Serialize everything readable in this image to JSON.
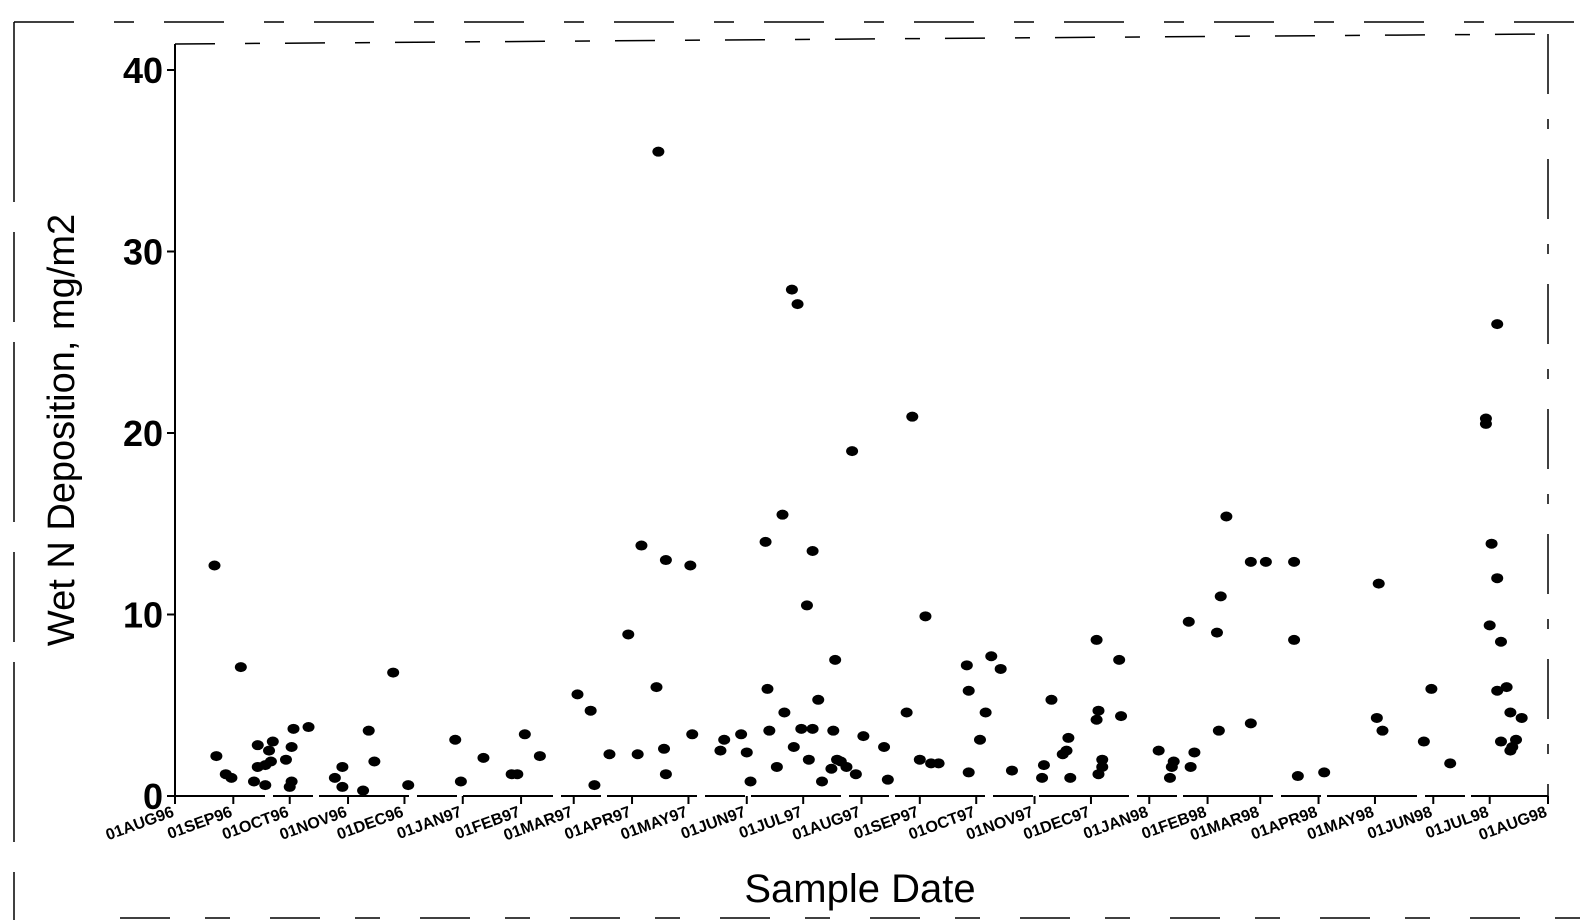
{
  "chart_data": {
    "type": "scatter",
    "title": "",
    "xlabel": "Sample Date",
    "ylabel": "Wet N Deposition, mg/m2",
    "ylim": [
      0,
      40
    ],
    "xlim": [
      "1996-08-01",
      "1998-08-01"
    ],
    "grid": false,
    "legend": "none",
    "marker_color": "#000000",
    "y_ticks": [
      0,
      10,
      20,
      30,
      40
    ],
    "x_ticks": [
      {
        "label": "01AUG96",
        "date": "1996-08-01"
      },
      {
        "label": "01SEP96",
        "date": "1996-09-01"
      },
      {
        "label": "01OCT96",
        "date": "1996-10-01"
      },
      {
        "label": "01NOV96",
        "date": "1996-11-01"
      },
      {
        "label": "01DEC96",
        "date": "1996-12-01"
      },
      {
        "label": "01JAN97",
        "date": "1997-01-01"
      },
      {
        "label": "01FEB97",
        "date": "1997-02-01"
      },
      {
        "label": "01MAR97",
        "date": "1997-03-01"
      },
      {
        "label": "01APR97",
        "date": "1997-04-01"
      },
      {
        "label": "01MAY97",
        "date": "1997-05-01"
      },
      {
        "label": "01JUN97",
        "date": "1997-06-01"
      },
      {
        "label": "01JUL97",
        "date": "1997-07-01"
      },
      {
        "label": "01AUG97",
        "date": "1997-08-01"
      },
      {
        "label": "01SEP97",
        "date": "1997-09-01"
      },
      {
        "label": "01OCT97",
        "date": "1997-10-01"
      },
      {
        "label": "01NOV97",
        "date": "1997-11-01"
      },
      {
        "label": "01DEC97",
        "date": "1997-12-01"
      },
      {
        "label": "01JAN98",
        "date": "1998-01-01"
      },
      {
        "label": "01FEB98",
        "date": "1998-02-01"
      },
      {
        "label": "01MAR98",
        "date": "1998-03-01"
      },
      {
        "label": "01APR98",
        "date": "1998-04-01"
      },
      {
        "label": "01MAY98",
        "date": "1998-05-01"
      },
      {
        "label": "01JUN98",
        "date": "1998-06-01"
      },
      {
        "label": "01JUL98",
        "date": "1998-07-01"
      },
      {
        "label": "01AUG98",
        "date": "1998-08-01"
      }
    ],
    "points": [
      {
        "x": "1996-08-22",
        "y": 12.7
      },
      {
        "x": "1996-08-23",
        "y": 2.2
      },
      {
        "x": "1996-08-28",
        "y": 1.2
      },
      {
        "x": "1996-08-31",
        "y": 1.0
      },
      {
        "x": "1996-09-05",
        "y": 7.1
      },
      {
        "x": "1996-09-12",
        "y": 0.8
      },
      {
        "x": "1996-09-14",
        "y": 1.6
      },
      {
        "x": "1996-09-14",
        "y": 2.8
      },
      {
        "x": "1996-09-18",
        "y": 0.6
      },
      {
        "x": "1996-09-18",
        "y": 1.7
      },
      {
        "x": "1996-09-20",
        "y": 2.5
      },
      {
        "x": "1996-09-21",
        "y": 1.9
      },
      {
        "x": "1996-09-22",
        "y": 3.0
      },
      {
        "x": "1996-09-29",
        "y": 2.0
      },
      {
        "x": "1996-10-01",
        "y": 0.5
      },
      {
        "x": "1996-10-02",
        "y": 2.7
      },
      {
        "x": "1996-10-02",
        "y": 0.8
      },
      {
        "x": "1996-10-03",
        "y": 3.7
      },
      {
        "x": "1996-10-11",
        "y": 3.8
      },
      {
        "x": "1996-10-25",
        "y": 1.0
      },
      {
        "x": "1996-10-29",
        "y": 1.6
      },
      {
        "x": "1996-10-29",
        "y": 0.5
      },
      {
        "x": "1996-11-09",
        "y": 0.3
      },
      {
        "x": "1996-11-12",
        "y": 3.6
      },
      {
        "x": "1996-11-15",
        "y": 1.9
      },
      {
        "x": "1996-11-25",
        "y": 6.8
      },
      {
        "x": "1996-12-03",
        "y": 0.6
      },
      {
        "x": "1996-12-28",
        "y": 3.1
      },
      {
        "x": "1996-12-31",
        "y": 0.8
      },
      {
        "x": "1997-01-12",
        "y": 2.1
      },
      {
        "x": "1997-01-27",
        "y": 1.2
      },
      {
        "x": "1997-01-30",
        "y": 1.2
      },
      {
        "x": "1997-02-03",
        "y": 3.4
      },
      {
        "x": "1997-02-11",
        "y": 2.2
      },
      {
        "x": "1997-03-03",
        "y": 5.6
      },
      {
        "x": "1997-03-10",
        "y": 4.7
      },
      {
        "x": "1997-03-12",
        "y": 0.6
      },
      {
        "x": "1997-03-20",
        "y": 2.3
      },
      {
        "x": "1997-03-30",
        "y": 8.9
      },
      {
        "x": "1997-04-04",
        "y": 2.3
      },
      {
        "x": "1997-04-06",
        "y": 13.8
      },
      {
        "x": "1997-04-14",
        "y": 6.0
      },
      {
        "x": "1997-04-15",
        "y": 35.5
      },
      {
        "x": "1997-04-18",
        "y": 2.6
      },
      {
        "x": "1997-04-19",
        "y": 1.2
      },
      {
        "x": "1997-04-19",
        "y": 13.0
      },
      {
        "x": "1997-05-02",
        "y": 12.7
      },
      {
        "x": "1997-05-03",
        "y": 3.4
      },
      {
        "x": "1997-05-18",
        "y": 2.5
      },
      {
        "x": "1997-05-20",
        "y": 3.1
      },
      {
        "x": "1997-05-29",
        "y": 3.4
      },
      {
        "x": "1997-06-01",
        "y": 2.4
      },
      {
        "x": "1997-06-03",
        "y": 0.8
      },
      {
        "x": "1997-06-11",
        "y": 14.0
      },
      {
        "x": "1997-06-12",
        "y": 5.9
      },
      {
        "x": "1997-06-13",
        "y": 3.6
      },
      {
        "x": "1997-06-17",
        "y": 1.6
      },
      {
        "x": "1997-06-20",
        "y": 15.5
      },
      {
        "x": "1997-06-21",
        "y": 4.6
      },
      {
        "x": "1997-06-25",
        "y": 27.9
      },
      {
        "x": "1997-06-26",
        "y": 2.7
      },
      {
        "x": "1997-06-28",
        "y": 27.1
      },
      {
        "x": "1997-06-30",
        "y": 3.7
      },
      {
        "x": "1997-07-03",
        "y": 10.5
      },
      {
        "x": "1997-07-04",
        "y": 2.0
      },
      {
        "x": "1997-07-06",
        "y": 3.7
      },
      {
        "x": "1997-07-06",
        "y": 13.5
      },
      {
        "x": "1997-07-09",
        "y": 5.3
      },
      {
        "x": "1997-07-11",
        "y": 0.8
      },
      {
        "x": "1997-07-16",
        "y": 1.5
      },
      {
        "x": "1997-07-17",
        "y": 3.6
      },
      {
        "x": "1997-07-18",
        "y": 7.5
      },
      {
        "x": "1997-07-19",
        "y": 2.0
      },
      {
        "x": "1997-07-21",
        "y": 1.9
      },
      {
        "x": "1997-07-24",
        "y": 1.6
      },
      {
        "x": "1997-07-27",
        "y": 19.0
      },
      {
        "x": "1997-07-29",
        "y": 1.2
      },
      {
        "x": "1997-08-02",
        "y": 3.3
      },
      {
        "x": "1997-08-13",
        "y": 2.7
      },
      {
        "x": "1997-08-15",
        "y": 0.9
      },
      {
        "x": "1997-08-25",
        "y": 4.6
      },
      {
        "x": "1997-08-28",
        "y": 20.9
      },
      {
        "x": "1997-09-01",
        "y": 2.0
      },
      {
        "x": "1997-09-04",
        "y": 9.9
      },
      {
        "x": "1997-09-07",
        "y": 1.8
      },
      {
        "x": "1997-09-11",
        "y": 1.8
      },
      {
        "x": "1997-09-26",
        "y": 7.2
      },
      {
        "x": "1997-09-27",
        "y": 5.8
      },
      {
        "x": "1997-09-27",
        "y": 1.3
      },
      {
        "x": "1997-10-03",
        "y": 3.1
      },
      {
        "x": "1997-10-06",
        "y": 4.6
      },
      {
        "x": "1997-10-09",
        "y": 7.7
      },
      {
        "x": "1997-10-14",
        "y": 7.0
      },
      {
        "x": "1997-10-20",
        "y": 1.4
      },
      {
        "x": "1997-11-05",
        "y": 1.0
      },
      {
        "x": "1997-11-06",
        "y": 1.7
      },
      {
        "x": "1997-11-10",
        "y": 5.3
      },
      {
        "x": "1997-11-16",
        "y": 2.3
      },
      {
        "x": "1997-11-18",
        "y": 2.5
      },
      {
        "x": "1997-11-19",
        "y": 3.2
      },
      {
        "x": "1997-11-20",
        "y": 1.0
      },
      {
        "x": "1997-12-04",
        "y": 4.2
      },
      {
        "x": "1997-12-04",
        "y": 8.6
      },
      {
        "x": "1997-12-05",
        "y": 4.7
      },
      {
        "x": "1997-12-05",
        "y": 1.2
      },
      {
        "x": "1997-12-07",
        "y": 2.0
      },
      {
        "x": "1997-12-07",
        "y": 1.6
      },
      {
        "x": "1997-12-16",
        "y": 7.5
      },
      {
        "x": "1997-12-17",
        "y": 4.4
      },
      {
        "x": "1998-01-06",
        "y": 2.5
      },
      {
        "x": "1998-01-12",
        "y": 1.0
      },
      {
        "x": "1998-01-13",
        "y": 1.6
      },
      {
        "x": "1998-01-14",
        "y": 1.9
      },
      {
        "x": "1998-01-22",
        "y": 9.6
      },
      {
        "x": "1998-01-23",
        "y": 1.6
      },
      {
        "x": "1998-01-25",
        "y": 2.4
      },
      {
        "x": "1998-02-06",
        "y": 9.0
      },
      {
        "x": "1998-02-07",
        "y": 3.6
      },
      {
        "x": "1998-02-08",
        "y": 11.0
      },
      {
        "x": "1998-02-11",
        "y": 15.4
      },
      {
        "x": "1998-02-24",
        "y": 4.0
      },
      {
        "x": "1998-02-24",
        "y": 12.9
      },
      {
        "x": "1998-03-04",
        "y": 12.9
      },
      {
        "x": "1998-03-19",
        "y": 12.9
      },
      {
        "x": "1998-03-19",
        "y": 8.6
      },
      {
        "x": "1998-03-21",
        "y": 1.1
      },
      {
        "x": "1998-04-04",
        "y": 1.3
      },
      {
        "x": "1998-05-02",
        "y": 4.3
      },
      {
        "x": "1998-05-03",
        "y": 11.7
      },
      {
        "x": "1998-05-05",
        "y": 3.6
      },
      {
        "x": "1998-05-27",
        "y": 3.0
      },
      {
        "x": "1998-05-31",
        "y": 5.9
      },
      {
        "x": "1998-06-10",
        "y": 1.8
      },
      {
        "x": "1998-06-29",
        "y": 20.8
      },
      {
        "x": "1998-06-29",
        "y": 20.5
      },
      {
        "x": "1998-07-01",
        "y": 9.4
      },
      {
        "x": "1998-07-02",
        "y": 13.9
      },
      {
        "x": "1998-07-05",
        "y": 5.8
      },
      {
        "x": "1998-07-05",
        "y": 12.0
      },
      {
        "x": "1998-07-05",
        "y": 26.0
      },
      {
        "x": "1998-07-07",
        "y": 8.5
      },
      {
        "x": "1998-07-07",
        "y": 3.0
      },
      {
        "x": "1998-07-10",
        "y": 6.0
      },
      {
        "x": "1998-07-12",
        "y": 4.6
      },
      {
        "x": "1998-07-12",
        "y": 2.5
      },
      {
        "x": "1998-07-13",
        "y": 2.7
      },
      {
        "x": "1998-07-15",
        "y": 3.1
      },
      {
        "x": "1998-07-18",
        "y": 4.3
      }
    ]
  }
}
